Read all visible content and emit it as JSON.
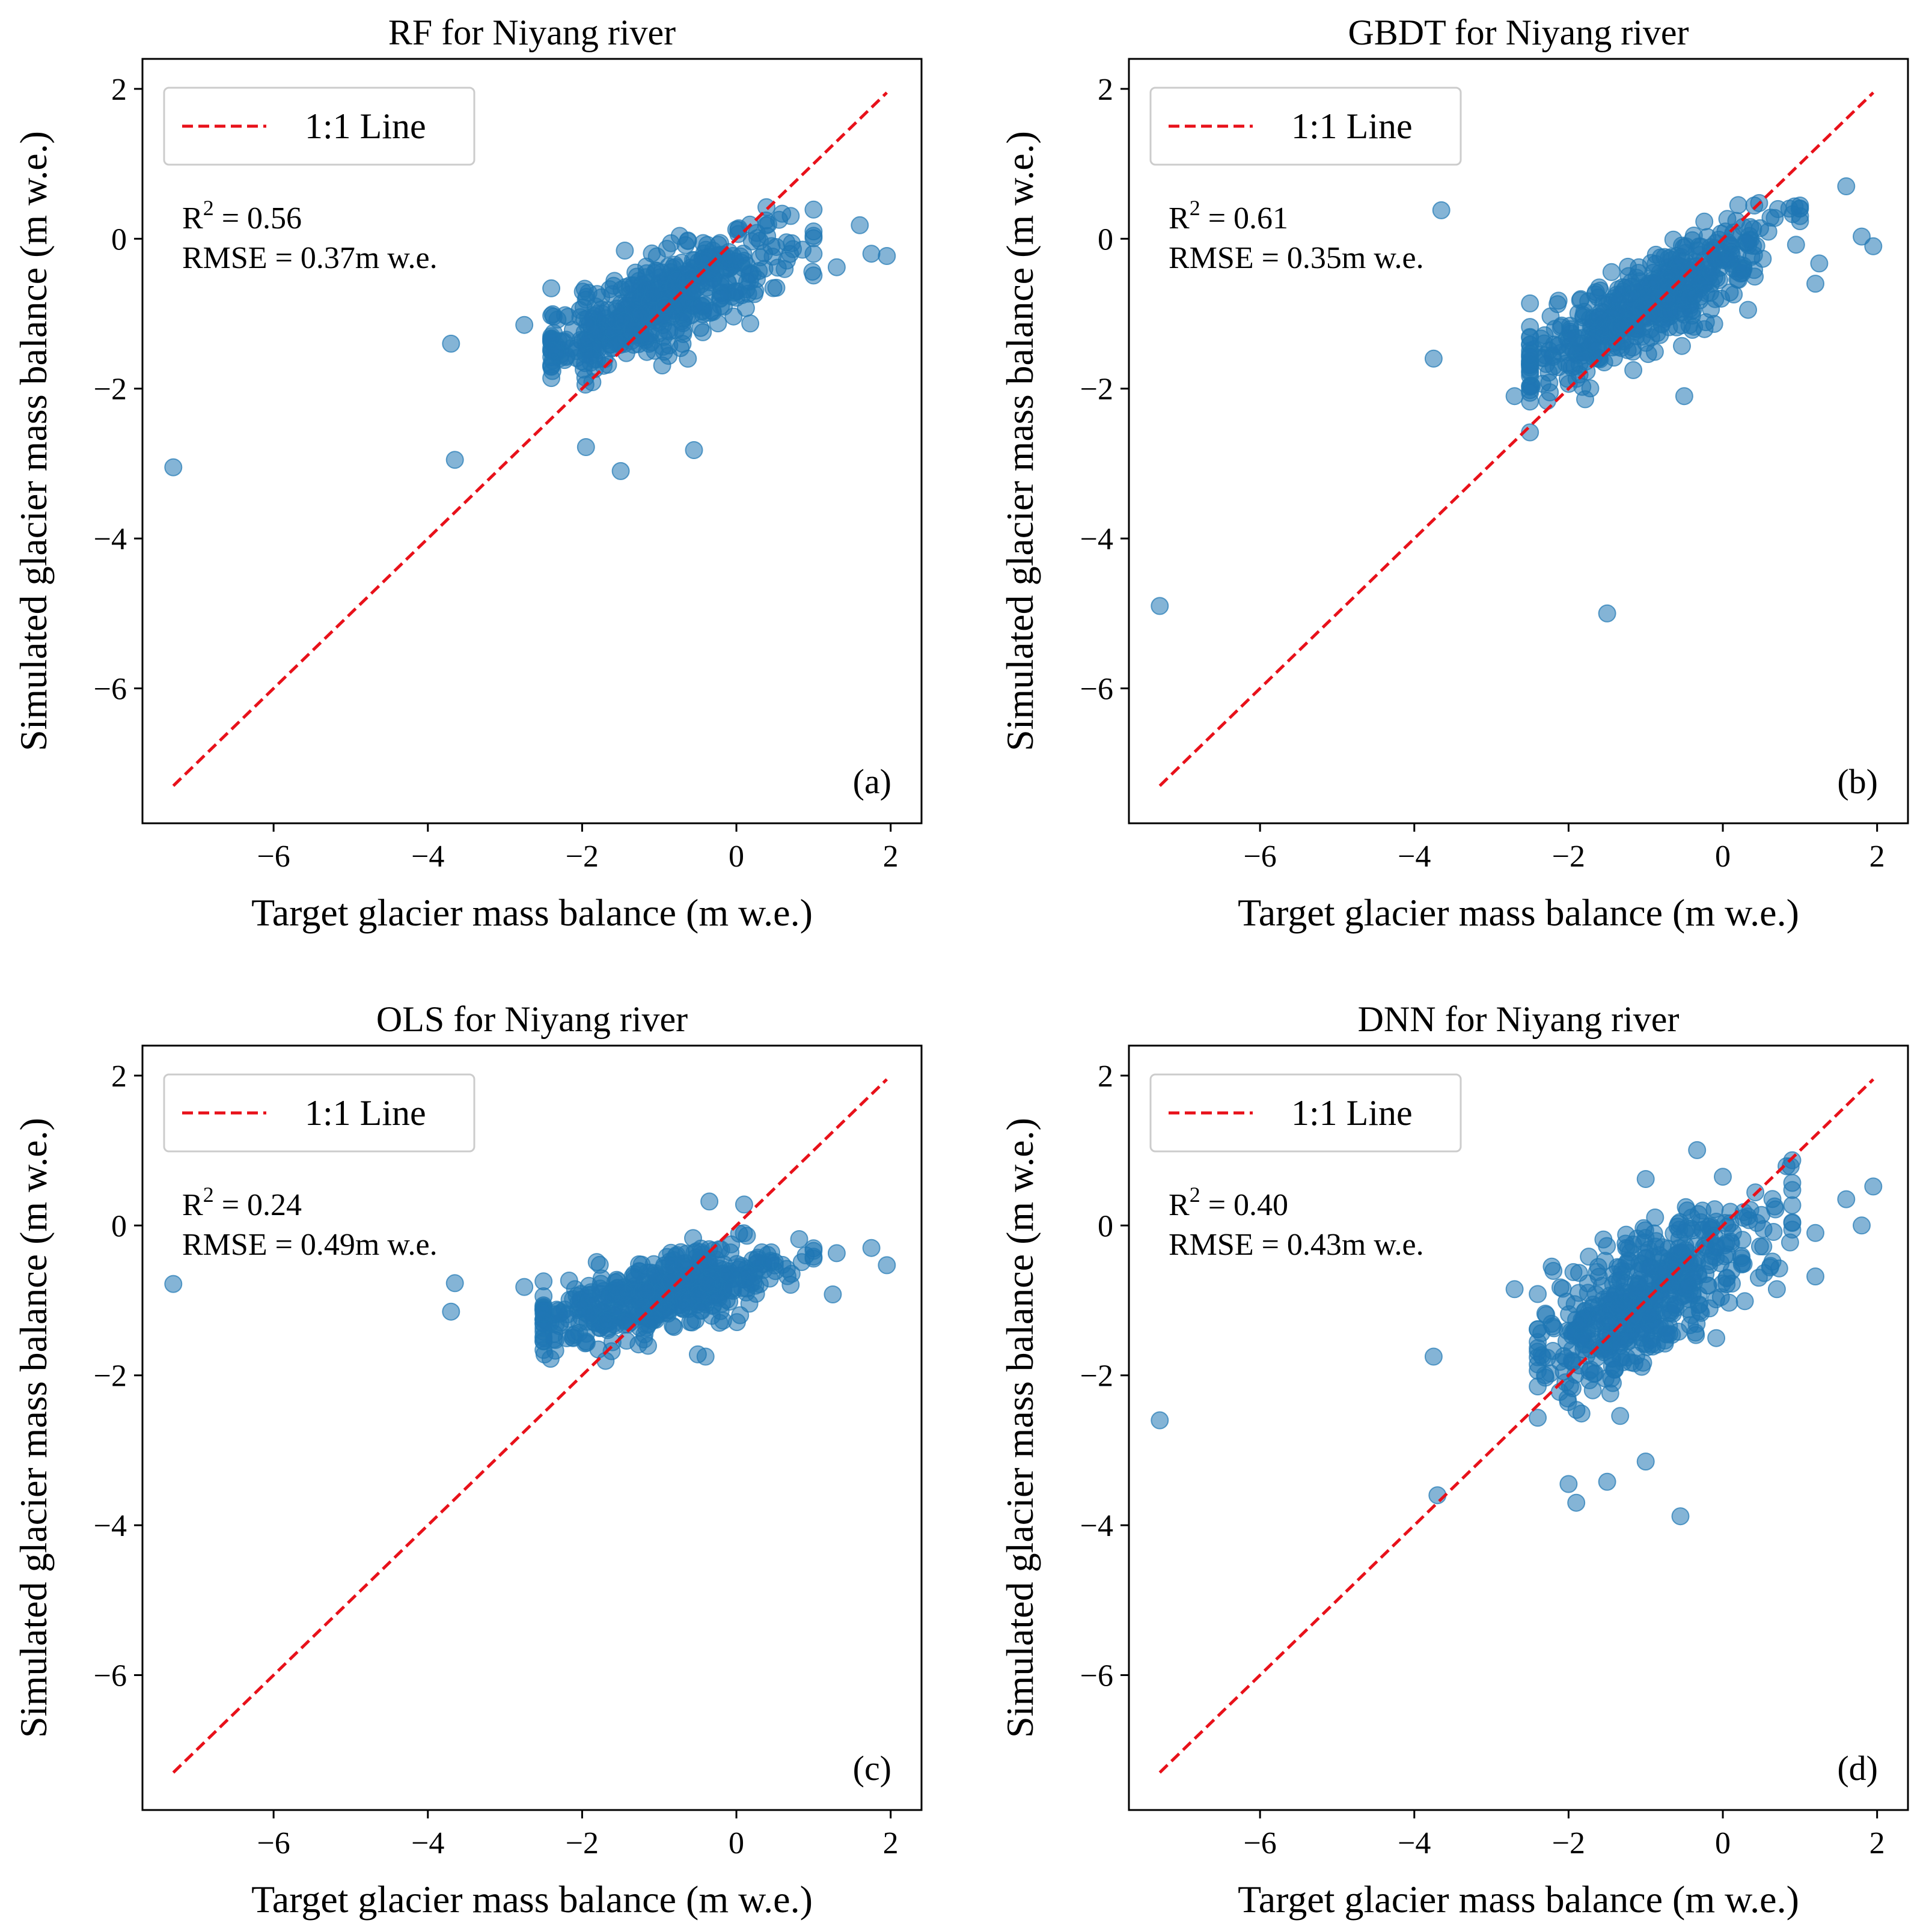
{
  "chart_data": [
    {
      "type": "scatter",
      "title": "RF for Niyang river",
      "xlabel": "Target glacier mass balance (m w.e.)",
      "ylabel": "Simulated glacier mass balance (m w.e.)",
      "xlim": [
        -7.7,
        2.4
      ],
      "ylim": [
        -7.8,
        2.4
      ],
      "xticks": [
        -6,
        -4,
        -2,
        0,
        2
      ],
      "yticks": [
        -6,
        -4,
        -2,
        0,
        2
      ],
      "tick_labels": [
        "−6",
        "−4",
        "−2",
        "0",
        "2"
      ],
      "legend": {
        "label": "1:1 Line",
        "position": "upper left"
      },
      "stats": {
        "r2_prefix": "R",
        "r2_sup": "2",
        "r2_value": " = 0.56",
        "rmse": "RMSE = 0.37m w.e."
      },
      "panel_letter": "(a)",
      "line": {
        "name": "1:1 Line",
        "x": [
          -7.3,
          1.95
        ],
        "y": [
          -7.3,
          1.95
        ],
        "color": "#e8111a"
      },
      "point_color": "#1f77b4",
      "cluster": {
        "cx": -1.0,
        "cy": -0.85,
        "xmin": -2.4,
        "xmax": 1.0,
        "slope": 0.45,
        "spread": 0.3,
        "n": 520
      },
      "outliers": [
        [
          -7.3,
          -3.05
        ],
        [
          -3.7,
          -1.4
        ],
        [
          -3.65,
          -2.95
        ],
        [
          -1.95,
          -2.78
        ],
        [
          -1.5,
          -3.1
        ],
        [
          -0.55,
          -2.82
        ],
        [
          -2.75,
          -1.15
        ],
        [
          1.6,
          0.18
        ],
        [
          1.75,
          -0.2
        ],
        [
          1.95,
          -0.23
        ],
        [
          1.3,
          -0.38
        ]
      ]
    },
    {
      "type": "scatter",
      "title": "GBDT for Niyang river",
      "xlabel": "Target glacier mass balance (m w.e.)",
      "ylabel": "Simulated glacier mass balance (m w.e.)",
      "xlim": [
        -7.7,
        2.4
      ],
      "ylim": [
        -7.8,
        2.4
      ],
      "xticks": [
        -6,
        -4,
        -2,
        0,
        2
      ],
      "yticks": [
        -6,
        -4,
        -2,
        0,
        2
      ],
      "tick_labels": [
        "−6",
        "−4",
        "−2",
        "0",
        "2"
      ],
      "legend": {
        "label": "1:1 Line",
        "position": "upper left"
      },
      "stats": {
        "r2_prefix": "R",
        "r2_sup": "2",
        "r2_value": " = 0.61",
        "rmse": "RMSE = 0.35m w.e."
      },
      "panel_letter": "(b)",
      "line": {
        "name": "1:1 Line",
        "x": [
          -7.3,
          1.95
        ],
        "y": [
          -7.3,
          1.95
        ],
        "color": "#e8111a"
      },
      "point_color": "#1f77b4",
      "cluster": {
        "cx": -1.0,
        "cy": -0.9,
        "xmin": -2.5,
        "xmax": 1.0,
        "slope": 0.55,
        "spread": 0.3,
        "n": 520
      },
      "outliers": [
        [
          -7.3,
          -4.9
        ],
        [
          -3.75,
          -1.6
        ],
        [
          -3.65,
          0.38
        ],
        [
          -1.5,
          -5.0
        ],
        [
          -2.7,
          -2.1
        ],
        [
          -0.5,
          -2.1
        ],
        [
          1.6,
          0.7
        ],
        [
          1.8,
          0.03
        ],
        [
          1.95,
          -0.1
        ],
        [
          1.2,
          -0.6
        ],
        [
          1.25,
          -0.33
        ],
        [
          0.2,
          0.45
        ]
      ]
    },
    {
      "type": "scatter",
      "title": "OLS for Niyang river",
      "xlabel": "Target glacier mass balance (m w.e.)",
      "ylabel": "Simulated glacier mass balance (m w.e.)",
      "xlim": [
        -7.7,
        2.4
      ],
      "ylim": [
        -7.8,
        2.4
      ],
      "xticks": [
        -6,
        -4,
        -2,
        0,
        2
      ],
      "yticks": [
        -6,
        -4,
        -2,
        0,
        2
      ],
      "tick_labels": [
        "−6",
        "−4",
        "−2",
        "0",
        "2"
      ],
      "legend": {
        "label": "1:1 Line",
        "position": "upper left"
      },
      "stats": {
        "r2_prefix": "R",
        "r2_sup": "2",
        "r2_value": " = 0.24",
        "rmse": "RMSE = 0.49m w.e."
      },
      "panel_letter": "(c)",
      "line": {
        "name": "1:1 Line",
        "x": [
          -7.3,
          1.95
        ],
        "y": [
          -7.3,
          1.95
        ],
        "color": "#e8111a"
      },
      "point_color": "#1f77b4",
      "cluster": {
        "cx": -1.0,
        "cy": -0.95,
        "xmin": -2.5,
        "xmax": 1.0,
        "slope": 0.25,
        "spread": 0.25,
        "n": 520
      },
      "outliers": [
        [
          -7.3,
          -0.78
        ],
        [
          -3.7,
          -1.15
        ],
        [
          -3.65,
          -0.77
        ],
        [
          -2.75,
          -0.82
        ],
        [
          -0.5,
          -1.72
        ],
        [
          -0.4,
          -1.75
        ],
        [
          1.3,
          -0.37
        ],
        [
          1.25,
          -0.92
        ],
        [
          1.75,
          -0.3
        ],
        [
          1.95,
          -0.53
        ],
        [
          -0.35,
          0.32
        ],
        [
          0.1,
          0.28
        ]
      ]
    },
    {
      "type": "scatter",
      "title": "DNN for Niyang river",
      "xlabel": "Target glacier mass balance (m w.e.)",
      "ylabel": "Simulated glacier mass balance (m w.e.)",
      "xlim": [
        -7.7,
        2.4
      ],
      "ylim": [
        -7.8,
        2.4
      ],
      "xticks": [
        -6,
        -4,
        -2,
        0,
        2
      ],
      "yticks": [
        -6,
        -4,
        -2,
        0,
        2
      ],
      "tick_labels": [
        "−6",
        "−4",
        "−2",
        "0",
        "2"
      ],
      "legend": {
        "label": "1:1 Line",
        "position": "upper left"
      },
      "stats": {
        "r2_prefix": "R",
        "r2_sup": "2",
        "r2_value": " = 0.40",
        "rmse": "RMSE = 0.43m w.e."
      },
      "panel_letter": "(d)",
      "line": {
        "name": "1:1 Line",
        "x": [
          -7.3,
          1.95
        ],
        "y": [
          -7.3,
          1.95
        ],
        "color": "#e8111a"
      },
      "point_color": "#1f77b4",
      "cluster": {
        "cx": -0.95,
        "cy": -0.95,
        "xmin": -2.4,
        "xmax": 0.9,
        "slope": 0.6,
        "spread": 0.45,
        "n": 520
      },
      "outliers": [
        [
          -7.3,
          -2.6
        ],
        [
          -3.75,
          -1.75
        ],
        [
          -3.7,
          -3.6
        ],
        [
          -2.0,
          -3.45
        ],
        [
          -1.9,
          -3.7
        ],
        [
          -1.5,
          -3.42
        ],
        [
          -1.0,
          -3.15
        ],
        [
          -0.55,
          -3.88
        ],
        [
          -2.7,
          -0.85
        ],
        [
          -1.0,
          0.62
        ],
        [
          0.0,
          0.65
        ],
        [
          1.6,
          0.35
        ],
        [
          1.8,
          0.0
        ],
        [
          1.95,
          0.52
        ],
        [
          1.2,
          -0.68
        ],
        [
          1.2,
          -0.1
        ],
        [
          0.7,
          -0.85
        ]
      ]
    }
  ]
}
